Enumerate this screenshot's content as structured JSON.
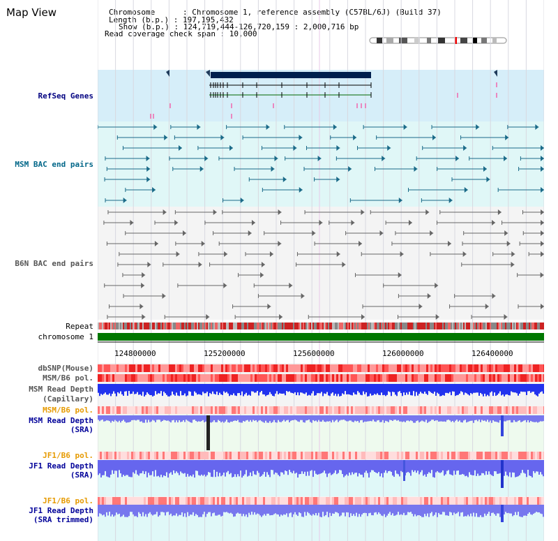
{
  "title": "Map View",
  "info": {
    "chromosome_line": "Chromosome      : Chromosome 1, reference assembly (C57BL/6J) (Build 37)",
    "length_line": "Length (b.p.) : 197,195,432",
    "show_line": "Show (b.p.) : 124,719,444-126,720,159 : 2,000,716 bp",
    "coverage_line": "Read coverage check span : 10,000"
  },
  "tracks": {
    "refseq": "RefSeq Genes",
    "msm_bac": "MSM BAC end pairs",
    "b6n_bac": "B6N BAC end pairs",
    "repeat": "Repeat",
    "chromosome": "chromosome 1",
    "dbsnp": "dbSNP(Mouse)",
    "msm_b6_pol_1": "MSM/B6 pol.",
    "msm_read_depth_cap_1": "MSM Read Depth",
    "msm_read_depth_cap_2": "(Capillary)",
    "msm_b6_pol_2": "MSM/B6 pol.",
    "msm_read_depth_sra_1": "MSM Read Depth",
    "msm_read_depth_sra_2": "(SRA)",
    "jf1_b6_pol_1": "JF1/B6 pol.",
    "jf1_read_depth_sra_1": "JF1 Read Depth",
    "jf1_read_depth_sra_2": "(SRA)",
    "jf1_b6_pol_2": "JF1/B6 pol.",
    "jf1_read_depth_trim_1": "JF1 Read Depth",
    "jf1_read_depth_trim_2": "(SRA trimmed)"
  },
  "axis_ticks": [
    "124800000",
    "125200000",
    "125600000",
    "126000000",
    "126400000"
  ],
  "colors": {
    "refseq_label": "#000080",
    "msm_bac_label": "#006688",
    "b6n_bac_label": "#555555",
    "pol_label": "#e69a00",
    "depth_label": "#000099",
    "refseq_bg": "#d6eef9",
    "msm_bg": "#e0f7f7",
    "chromosome_bar": "#007700",
    "snp_red": "#e33",
    "depth_blue": "#2233ee"
  }
}
